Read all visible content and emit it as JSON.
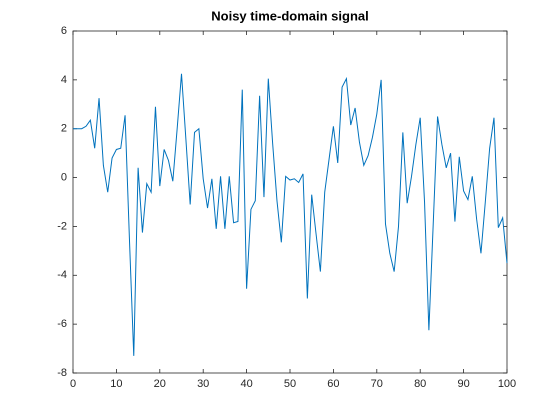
{
  "chart_data": {
    "type": "line",
    "title": "Noisy time-domain signal",
    "x": [
      0,
      1,
      2,
      3,
      4,
      5,
      6,
      7,
      8,
      9,
      10,
      11,
      12,
      13,
      14,
      15,
      16,
      17,
      18,
      19,
      20,
      21,
      22,
      23,
      24,
      25,
      26,
      27,
      28,
      29,
      30,
      31,
      32,
      33,
      34,
      35,
      36,
      37,
      38,
      39,
      40,
      41,
      42,
      43,
      44,
      45,
      46,
      47,
      48,
      49,
      50,
      51,
      52,
      53,
      54,
      55,
      56,
      57,
      58,
      59,
      60,
      61,
      62,
      63,
      64,
      65,
      66,
      67,
      68,
      69,
      70,
      71,
      72,
      73,
      74,
      75,
      76,
      77,
      78,
      79,
      80,
      81,
      82,
      83,
      84,
      85,
      86,
      87,
      88,
      89,
      90,
      91,
      92,
      93,
      94,
      95,
      96,
      97,
      98,
      99,
      100
    ],
    "series": [
      {
        "color": "#0072bd",
        "values": [
          2.0,
          2.0,
          2.0,
          2.1,
          2.35,
          1.2,
          3.25,
          0.5,
          -0.6,
          0.8,
          1.15,
          1.2,
          2.55,
          -2.5,
          -7.3,
          0.4,
          -2.25,
          -0.25,
          -0.6,
          2.9,
          -0.35,
          1.15,
          0.7,
          -0.15,
          2.0,
          4.25,
          1.6,
          -1.1,
          1.85,
          2.0,
          -0.05,
          -1.25,
          -0.05,
          -2.1,
          0.05,
          -2.1,
          0.05,
          -1.85,
          -1.8,
          3.6,
          -4.55,
          -1.3,
          -0.95,
          3.35,
          -0.8,
          4.05,
          1.4,
          -0.95,
          -2.65,
          0.05,
          -0.1,
          -0.05,
          -0.2,
          0.15,
          -4.95,
          -0.7,
          -2.3,
          -3.85,
          -0.6,
          0.75,
          2.1,
          0.6,
          3.7,
          4.05,
          2.15,
          2.85,
          1.45,
          0.5,
          0.9,
          1.65,
          2.6,
          4.0,
          -1.9,
          -3.1,
          -3.85,
          -2.0,
          1.85,
          -1.05,
          0.05,
          1.35,
          2.45,
          -1.0,
          -6.25,
          -1.9,
          2.5,
          1.35,
          0.4,
          1.0,
          -1.8,
          0.85,
          -0.55,
          -0.9,
          0.05,
          -1.7,
          -3.1,
          -1.0,
          1.2,
          2.45,
          -2.05,
          -1.65,
          -3.5
        ]
      }
    ],
    "xlim": [
      0,
      100
    ],
    "xticks": [
      0,
      10,
      20,
      30,
      40,
      50,
      60,
      70,
      80,
      90,
      100
    ],
    "ylim": [
      -8,
      6
    ],
    "yticks": [
      -8,
      -6,
      -4,
      -2,
      0,
      2,
      4,
      6
    ],
    "grid": false
  }
}
